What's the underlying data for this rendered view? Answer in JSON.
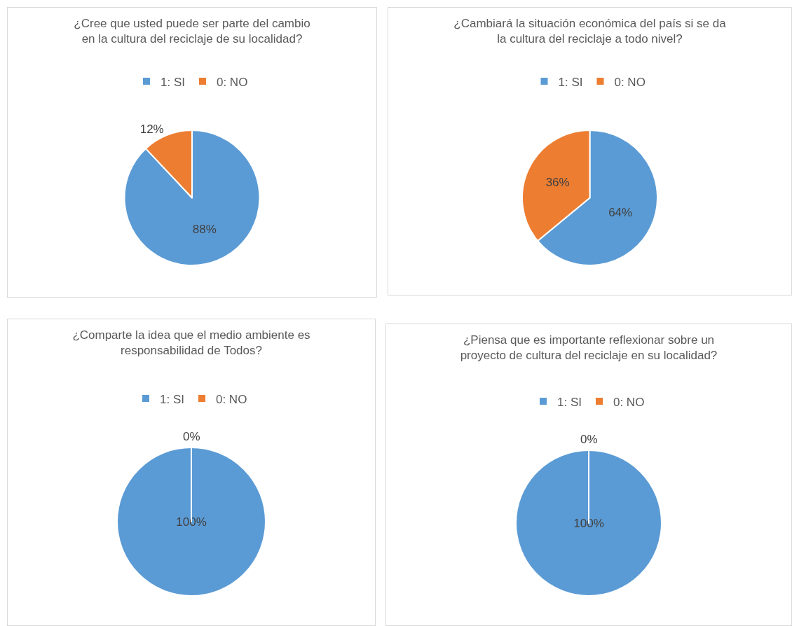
{
  "chart_data": [
    {
      "type": "pie",
      "title": "¿Cree que usted puede ser parte del cambio\nen la cultura del reciclaje de su localidad?",
      "categories": [
        "1: SI",
        "0: NO"
      ],
      "values": [
        88,
        12
      ],
      "colors": [
        "#5b9bd5",
        "#ed7d31"
      ],
      "value_labels": [
        "88%",
        "12%"
      ],
      "legend": "top"
    },
    {
      "type": "pie",
      "title": "¿Cambiará la situación económica del país si se da\nla cultura del reciclaje a todo nivel?",
      "categories": [
        "1: SI",
        "0: NO"
      ],
      "values": [
        64,
        36
      ],
      "colors": [
        "#5b9bd5",
        "#ed7d31"
      ],
      "value_labels": [
        "64%",
        "36%"
      ],
      "legend": "top"
    },
    {
      "type": "pie",
      "title": "¿Comparte la idea que el medio ambiente es\nresponsabilidad de Todos?",
      "categories": [
        "1: SI",
        "0: NO"
      ],
      "values": [
        100,
        0
      ],
      "colors": [
        "#5b9bd5",
        "#ed7d31"
      ],
      "value_labels": [
        "100%",
        "0%"
      ],
      "legend": "top"
    },
    {
      "type": "pie",
      "title": "¿Piensa que es importante reflexionar sobre un\nproyecto de cultura del reciclaje en su localidad?",
      "categories": [
        "1: SI",
        "0: NO"
      ],
      "values": [
        100,
        0
      ],
      "colors": [
        "#5b9bd5",
        "#ed7d31"
      ],
      "value_labels": [
        "100%",
        "0%"
      ],
      "legend": "top"
    }
  ]
}
